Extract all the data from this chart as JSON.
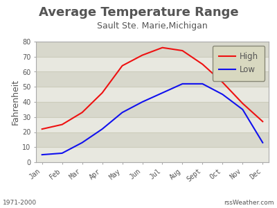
{
  "title": "Average Temperature Range",
  "subtitle": "Sault Ste. Marie,Michigan",
  "ylabel": "Fahrenheit",
  "months": [
    "Jan",
    "Feb",
    "Mar",
    "Apr",
    "May",
    "Jun",
    "Jul",
    "Aug",
    "Sept",
    "Oct",
    "Nov",
    "Dec"
  ],
  "high": [
    22,
    25,
    33,
    46,
    64,
    71,
    76,
    74,
    65,
    53,
    39,
    27
  ],
  "low_values": [
    5,
    6,
    13,
    22,
    33,
    40,
    46,
    52,
    52,
    45,
    35,
    13
  ],
  "high_color": "#ee1111",
  "low_color": "#1111ee",
  "ylim": [
    0,
    80
  ],
  "yticks": [
    0,
    10,
    20,
    30,
    40,
    50,
    60,
    70,
    80
  ],
  "outer_bg": "#ffffff",
  "band_light": "#e8e8e0",
  "band_dark": "#d8d8cc",
  "grid_color": "#ccccbb",
  "footer_left": "1971-2000",
  "footer_right": "rssWeather.com",
  "title_fontsize": 13,
  "subtitle_fontsize": 9,
  "tick_fontsize": 7,
  "ylabel_fontsize": 9,
  "legend_bg": "#d8d8c0",
  "legend_edge": "#888877",
  "text_color": "#555555"
}
